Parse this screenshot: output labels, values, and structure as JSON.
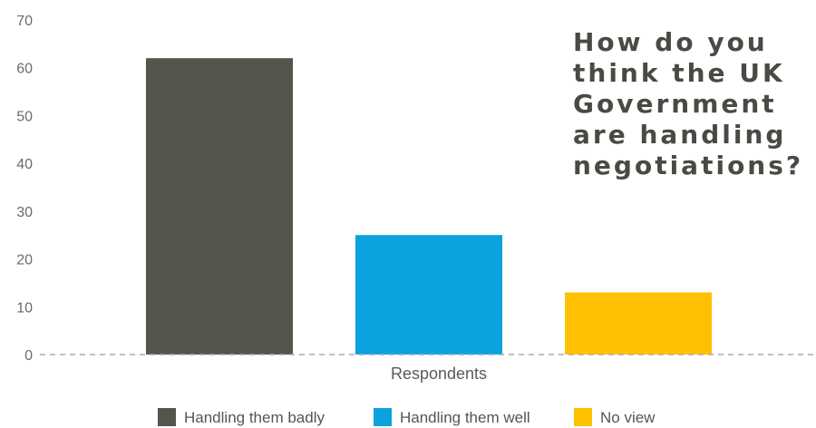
{
  "chart_data": {
    "type": "bar",
    "title_lines": [
      "How do you",
      "think the UK",
      "Government",
      "are handling",
      "negotiations?"
    ],
    "xlabel": "Respondents",
    "ylabel": "",
    "ylim": [
      0,
      70
    ],
    "yticks": [
      "0",
      "10",
      "20",
      "30",
      "40",
      "50",
      "60",
      "70"
    ],
    "grid": false,
    "legend_position": "bottom",
    "series": [
      {
        "name": "Handling them badly",
        "value": 62,
        "color": "#55554d"
      },
      {
        "name": "Handling them well",
        "value": 25,
        "color": "#0aa3e0"
      },
      {
        "name": "No view",
        "value": 13,
        "color": "#ffc000"
      }
    ],
    "baseline_color": "#aaaaaa"
  }
}
